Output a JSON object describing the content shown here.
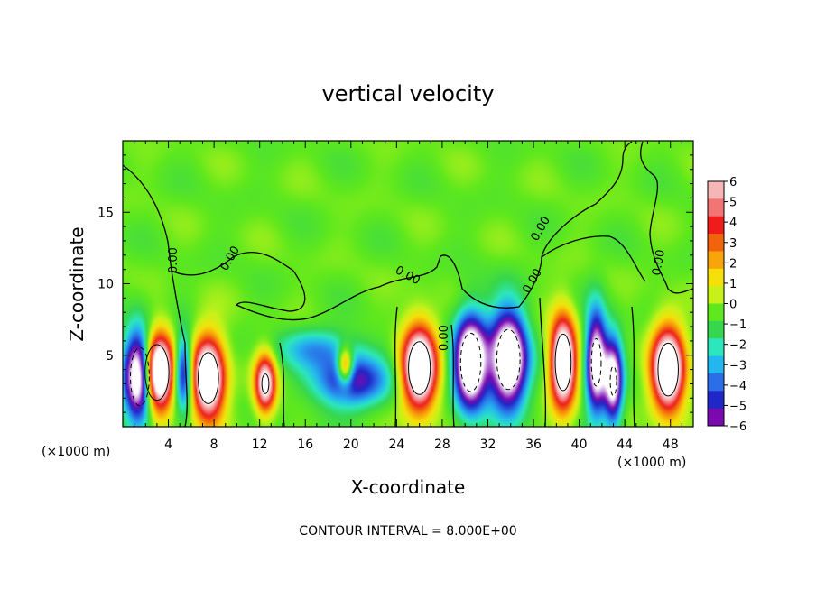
{
  "chart_data": {
    "type": "heatmap",
    "title": "vertical velocity",
    "xlabel": "X-coordinate",
    "ylabel": "Z-coordinate",
    "x_unit_label": "(×1000 m)",
    "footer": "CONTOUR INTERVAL = 8.000E+00",
    "xlim": [
      0,
      50
    ],
    "ylim": [
      0,
      20
    ],
    "x_ticks": [
      4,
      8,
      12,
      16,
      20,
      24,
      28,
      32,
      36,
      40,
      44,
      48
    ],
    "y_ticks": [
      5,
      10,
      15
    ],
    "colorbar": {
      "range": [
        -6,
        6
      ],
      "ticks": [
        6,
        5,
        4,
        3,
        2,
        1,
        0,
        -1,
        -2,
        -3,
        -4,
        -5,
        -6
      ],
      "colors": [
        "#f6b6b6",
        "#f27474",
        "#f01b1b",
        "#f2630d",
        "#f7a50a",
        "#f6e00a",
        "#c6f21a",
        "#5ee81d",
        "#36d74f",
        "#2ce7bd",
        "#24b6ee",
        "#2a6fe8",
        "#1f27c7",
        "#7a0ab0"
      ]
    },
    "contour_labels": [
      "0.00",
      "0.00",
      "0.00",
      "0.00",
      "0.00",
      "0.00",
      "0.00"
    ],
    "updrafts": [
      {
        "x": 3.0,
        "z": 3.8,
        "w": 1.4,
        "h": 2.6,
        "peak": 14
      },
      {
        "x": 7.5,
        "z": 3.4,
        "w": 1.4,
        "h": 2.8,
        "peak": 12
      },
      {
        "x": 12.5,
        "z": 3.0,
        "w": 0.9,
        "h": 2.0,
        "peak": 9
      },
      {
        "x": 19.5,
        "z": 4.2,
        "w": 0.7,
        "h": 1.3,
        "peak": 7
      },
      {
        "x": 26.0,
        "z": 4.1,
        "w": 1.5,
        "h": 2.9,
        "peak": 12
      },
      {
        "x": 38.6,
        "z": 4.5,
        "w": 1.1,
        "h": 3.1,
        "peak": 12
      },
      {
        "x": 47.8,
        "z": 4.0,
        "w": 1.4,
        "h": 2.9,
        "peak": 12
      }
    ],
    "downdrafts": [
      {
        "x": 1.5,
        "z": 3.5,
        "w": 1.3,
        "h": 3.2,
        "peak": -12
      },
      {
        "x": 5.3,
        "z": 3.8,
        "w": 0.8,
        "h": 2.5,
        "peak": -7
      },
      {
        "x": 20.0,
        "z": 3.2,
        "w": 3.2,
        "h": 1.8,
        "peak": -6
      },
      {
        "x": 17.0,
        "z": 5.5,
        "w": 3.5,
        "h": 1.4,
        "peak": -3
      },
      {
        "x": 30.5,
        "z": 4.5,
        "w": 1.4,
        "h": 3.2,
        "peak": -12
      },
      {
        "x": 33.8,
        "z": 4.7,
        "w": 1.6,
        "h": 3.3,
        "peak": -12
      },
      {
        "x": 41.5,
        "z": 4.5,
        "w": 0.9,
        "h": 3.5,
        "peak": -10
      },
      {
        "x": 43.0,
        "z": 3.2,
        "w": 0.8,
        "h": 3.0,
        "peak": -9
      }
    ]
  }
}
